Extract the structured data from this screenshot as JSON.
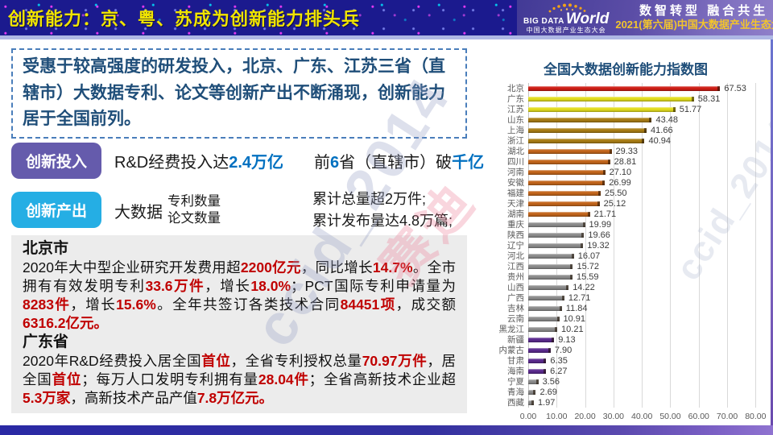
{
  "header": {
    "title": "创新能力：京、粤、苏成为创新能力排头兵",
    "logo": {
      "big": "BIG DATA",
      "world": "World",
      "sub": "中国大数据产业生态大会"
    },
    "slogan_line1": "数智转型 融合共生",
    "slogan_line2": "2021(第六届)中国大数据产业生态大会"
  },
  "intro": {
    "text": "受惠于较高强度的研发投入，北京、广东、江苏三省（直辖市）大数据专利、论文等创新产出不断涌现，创新能力居于全国前列。"
  },
  "investment": {
    "badge": "创新投入",
    "part1": [
      {
        "t": "R&D经费投入达"
      },
      {
        "t": "2.4万亿",
        "c": "blue"
      }
    ],
    "part2": [
      {
        "t": "前"
      },
      {
        "t": "6",
        "c": "blue"
      },
      {
        "t": "省（直辖市）破"
      },
      {
        "t": "千亿",
        "c": "blue"
      }
    ]
  },
  "output": {
    "badge": "创新产出",
    "label": "大数据",
    "stack": [
      "专利数量",
      "论文数量"
    ],
    "results": [
      "累计总量超2万件;",
      "累计发布量达4.8万篇;"
    ]
  },
  "regions": [
    {
      "name": "北京市",
      "segments": [
        {
          "t": "2020年大中型企业研究开发费用超"
        },
        {
          "t": "2200亿元",
          "c": "red"
        },
        {
          "t": "，同比增长"
        },
        {
          "t": "14.7%",
          "c": "red"
        },
        {
          "t": "。全市拥有有效发明专利"
        },
        {
          "t": "33.6万件",
          "c": "red"
        },
        {
          "t": "，增长"
        },
        {
          "t": "18.0%",
          "c": "red"
        },
        {
          "t": "；PCT国际专利申请量为"
        },
        {
          "t": "8283件",
          "c": "red"
        },
        {
          "t": "，增长"
        },
        {
          "t": "15.6%",
          "c": "red"
        },
        {
          "t": "。全年共签订各类技术合同"
        },
        {
          "t": "84451项",
          "c": "red"
        },
        {
          "t": "，成交额"
        },
        {
          "t": "6316.2亿元。",
          "c": "red"
        }
      ]
    },
    {
      "name": "广东省",
      "segments": [
        {
          "t": "2020年R&D经费投入居全国"
        },
        {
          "t": "首位",
          "c": "red"
        },
        {
          "t": "，全省专利授权总量"
        },
        {
          "t": "70.97万件",
          "c": "red"
        },
        {
          "t": "，居全国"
        },
        {
          "t": "首位",
          "c": "red"
        },
        {
          "t": "；每万人口发明专利拥有量"
        },
        {
          "t": "28.04件",
          "c": "red"
        },
        {
          "t": "；全省高新技术企业超"
        },
        {
          "t": "5.3万家",
          "c": "red"
        },
        {
          "t": "，高新技术产品产值"
        },
        {
          "t": "7.8万亿元。",
          "c": "red"
        }
      ]
    }
  ],
  "chart_data": {
    "type": "bar",
    "orientation": "horizontal",
    "title": "全国大数据创新能力指数图",
    "categories": [
      "北京",
      "广东",
      "江苏",
      "山东",
      "上海",
      "浙江",
      "湖北",
      "四川",
      "河南",
      "安徽",
      "福建",
      "天津",
      "湖南",
      "重庆",
      "陕西",
      "辽宁",
      "河北",
      "江西",
      "贵州",
      "山西",
      "广西",
      "吉林",
      "云南",
      "黑龙江",
      "新疆",
      "内蒙古",
      "甘肃",
      "海南",
      "宁夏",
      "青海",
      "西藏"
    ],
    "values": [
      67.53,
      58.31,
      51.77,
      43.48,
      41.66,
      40.94,
      29.33,
      28.81,
      27.1,
      26.99,
      25.5,
      25.12,
      21.71,
      19.99,
      19.66,
      19.32,
      16.07,
      15.72,
      15.59,
      14.22,
      12.71,
      11.84,
      10.91,
      10.21,
      9.13,
      7.9,
      6.35,
      6.27,
      3.56,
      2.69,
      1.97
    ],
    "colors": [
      "#ce1f16",
      "#e2dd1e",
      "#e2dd1e",
      "#a87d15",
      "#a87d15",
      "#a87d15",
      "#c2651b",
      "#c2651b",
      "#c2651b",
      "#c2651b",
      "#c2651b",
      "#c2651b",
      "#c2651b",
      "#8c8c8c",
      "#8c8c8c",
      "#8c8c8c",
      "#8c8c8c",
      "#8c8c8c",
      "#8c8c8c",
      "#8c8c8c",
      "#8c8c8c",
      "#8c8c8c",
      "#8c8c8c",
      "#8c8c8c",
      "#5b2b8e",
      "#5b2b8e",
      "#5b2b8e",
      "#5b2b8e",
      "#8c8c8c",
      "#8c8c8c",
      "#8c8c8c"
    ],
    "xlim": [
      0,
      80
    ],
    "scale_max": 85,
    "xticks": [
      "0.00",
      "10.00",
      "20.00",
      "30.00",
      "40.00",
      "50.00",
      "60.00",
      "70.00",
      "80.00"
    ],
    "grid": true,
    "legend": "none"
  },
  "watermarks": [
    {
      "text": "ccid_2014"
    },
    {
      "text": "ccid_2014"
    },
    {
      "text": "赛迪"
    }
  ],
  "colors": {
    "header_bg": "#1b1a8e",
    "header_title": "#f0e400",
    "accent_blue": "#0070c0",
    "accent_red": "#c00000",
    "intro_blue": "#1f4e79",
    "badge_invest": "#655bac",
    "badge_output": "#25aee4",
    "region_box_bg": "#ececec"
  }
}
